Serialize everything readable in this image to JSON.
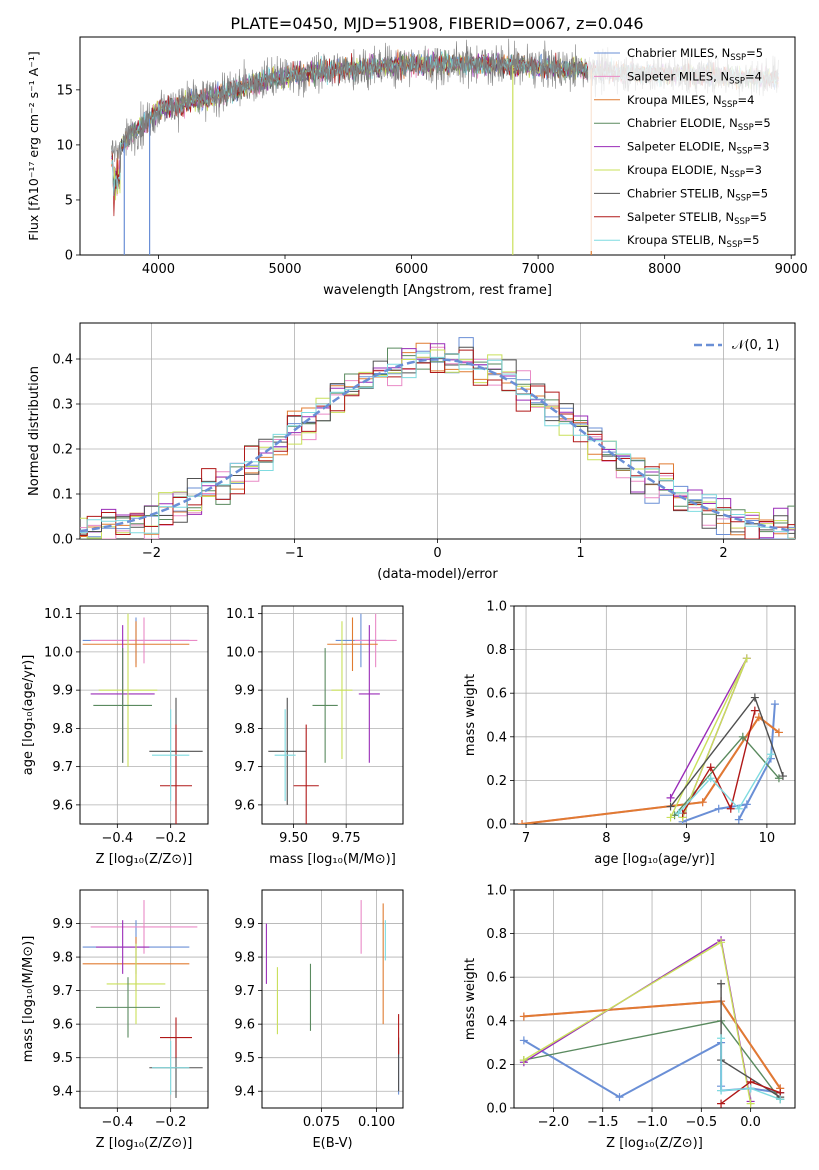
{
  "figure_title": "PLATE=0450, MJD=51908, FIBERID=0067, z=0.046",
  "colors": {
    "chabrier_miles": "#6a8fd6",
    "salpeter_miles": "#e98ac6",
    "kroupa_miles": "#e07b31",
    "chabrier_elodie": "#5a8a5f",
    "salpeter_elodie": "#9a2cb8",
    "kroupa_elodie": "#c9e05a",
    "chabrier_stelib": "#505050",
    "salpeter_stelib": "#b01818",
    "kroupa_stelib": "#7fdbe0",
    "data": "#7f7f7f",
    "normal_curve": "#6a8fd6",
    "grid": "#b0b0b0"
  },
  "chart_data": [
    {
      "id": "spectrum",
      "type": "line",
      "xlabel": "wavelength [Angstrom, rest frame]",
      "ylabel": "Flux [fλ10⁻¹⁷ erg cm⁻² s⁻¹ A⁻¹]",
      "xlim": [
        3380,
        9030
      ],
      "ylim": [
        0,
        19.8
      ],
      "xticks": [
        "4000",
        "5000",
        "6000",
        "7000",
        "8000",
        "9000"
      ],
      "yticks": [
        "0",
        "5",
        "10",
        "15"
      ],
      "grid": false,
      "legend_position": "upper right",
      "legend": [
        {
          "label": "Chabrier MILES, N",
          "sub": "SSP",
          "suffix": "=5",
          "color_key": "chabrier_miles"
        },
        {
          "label": "Salpeter MILES, N",
          "sub": "SSP",
          "suffix": "=4",
          "color_key": "salpeter_miles"
        },
        {
          "label": "Kroupa MILES, N",
          "sub": "SSP",
          "suffix": "=4",
          "color_key": "kroupa_miles"
        },
        {
          "label": "Chabrier ELODIE, N",
          "sub": "SSP",
          "suffix": "=5",
          "color_key": "chabrier_elodie"
        },
        {
          "label": "Salpeter ELODIE, N",
          "sub": "SSP",
          "suffix": "=3",
          "color_key": "salpeter_elodie"
        },
        {
          "label": "Kroupa ELODIE, N",
          "sub": "SSP",
          "suffix": "=3",
          "color_key": "kroupa_elodie"
        },
        {
          "label": "Chabrier STELIB, N",
          "sub": "SSP",
          "suffix": "=5",
          "color_key": "chabrier_stelib"
        },
        {
          "label": "Salpeter STELIB, N",
          "sub": "SSP",
          "suffix": "=5",
          "color_key": "salpeter_stelib"
        },
        {
          "label": "Kroupa STELIB, N",
          "sub": "SSP",
          "suffix": "=5",
          "color_key": "kroupa_stelib"
        }
      ],
      "continuum": {
        "x": [
          3630,
          3700,
          3800,
          3900,
          4000,
          4200,
          4500,
          4800,
          5100,
          5500,
          6000,
          6500,
          7000,
          7400,
          7800,
          8200,
          8600,
          8900
        ],
        "y": [
          9.0,
          9.8,
          11.2,
          12.0,
          13.2,
          13.8,
          14.6,
          15.8,
          16.4,
          16.9,
          17.3,
          17.4,
          17.1,
          16.8,
          16.5,
          16.4,
          16.2,
          16.1
        ]
      },
      "drops": [
        {
          "x": 3730,
          "y": 0
        },
        {
          "x": 3930,
          "y": 0
        },
        {
          "x": 6800,
          "y": 0
        },
        {
          "x": 7420,
          "y": 0
        }
      ]
    },
    {
      "id": "residuals",
      "type": "line",
      "xlabel": "(data-model)/error",
      "ylabel": "Normed distribution",
      "xlim": [
        -2.5,
        2.5
      ],
      "ylim": [
        0,
        0.48
      ],
      "xticks": [
        "−2",
        "−1",
        "0",
        "1",
        "2"
      ],
      "yticks": [
        "0.0",
        "0.1",
        "0.2",
        "0.3",
        "0.4"
      ],
      "grid": true,
      "legend": "𝒩(0, 1)",
      "legend_position": "upper right",
      "bin_width": 0.1,
      "normal": {
        "mean": 0,
        "sigma": 1
      }
    },
    {
      "id": "age_vs_Z",
      "type": "scatter",
      "xlabel": "Z [log₁₀(Z/Z⊙)]",
      "ylabel": "age  [log₁₀(age/yr)]",
      "xlim": [
        -0.54,
        -0.06
      ],
      "ylim": [
        9.55,
        10.12
      ],
      "xticks": [
        "−0.4",
        "−0.2"
      ],
      "yticks": [
        "9.6",
        "9.7",
        "9.8",
        "9.9",
        "10.0",
        "10.1"
      ],
      "grid": true,
      "points": [
        {
          "x": -0.33,
          "y": 10.03,
          "xerr": 0.2,
          "yerr": 0.06,
          "color_key": "chabrier_miles"
        },
        {
          "x": -0.3,
          "y": 10.03,
          "xerr": 0.2,
          "yerr": 0.06,
          "color_key": "salpeter_miles"
        },
        {
          "x": -0.33,
          "y": 10.02,
          "xerr": 0.2,
          "yerr": 0.06,
          "color_key": "kroupa_miles"
        },
        {
          "x": -0.38,
          "y": 9.89,
          "xerr": 0.12,
          "yerr": 0.18,
          "color_key": "salpeter_elodie"
        },
        {
          "x": -0.36,
          "y": 9.9,
          "xerr": 0.11,
          "yerr": 0.2,
          "color_key": "kroupa_elodie"
        },
        {
          "x": -0.38,
          "y": 9.86,
          "xerr": 0.11,
          "yerr": 0.15,
          "color_key": "chabrier_elodie"
        },
        {
          "x": -0.18,
          "y": 9.74,
          "xerr": 0.1,
          "yerr": 0.14,
          "color_key": "chabrier_stelib"
        },
        {
          "x": -0.18,
          "y": 9.65,
          "xerr": 0.06,
          "yerr": 0.16,
          "color_key": "salpeter_stelib"
        },
        {
          "x": -0.2,
          "y": 9.73,
          "xerr": 0.07,
          "yerr": 0.12,
          "color_key": "kroupa_stelib"
        }
      ]
    },
    {
      "id": "age_vs_mass",
      "type": "scatter",
      "xlabel": "mass [log₁₀(M/M⊙)]",
      "ylabel": "",
      "xlim": [
        9.35,
        10.02
      ],
      "ylim": [
        9.55,
        10.12
      ],
      "xticks": [
        "9.50",
        "9.75"
      ],
      "yticks": [
        "9.6",
        "9.7",
        "9.8",
        "9.9",
        "10.0",
        "10.1"
      ],
      "grid": true,
      "points": [
        {
          "x": 9.82,
          "y": 10.03,
          "xerr": 0.12,
          "yerr": 0.07,
          "color_key": "chabrier_miles"
        },
        {
          "x": 9.89,
          "y": 10.03,
          "xerr": 0.1,
          "yerr": 0.07,
          "color_key": "salpeter_miles"
        },
        {
          "x": 9.78,
          "y": 10.02,
          "xerr": 0.12,
          "yerr": 0.07,
          "color_key": "kroupa_miles"
        },
        {
          "x": 9.86,
          "y": 9.89,
          "xerr": 0.05,
          "yerr": 0.18,
          "color_key": "salpeter_elodie"
        },
        {
          "x": 9.73,
          "y": 9.9,
          "xerr": 0.05,
          "yerr": 0.18,
          "color_key": "kroupa_elodie"
        },
        {
          "x": 9.65,
          "y": 9.86,
          "xerr": 0.06,
          "yerr": 0.15,
          "color_key": "chabrier_elodie"
        },
        {
          "x": 9.47,
          "y": 9.74,
          "xerr": 0.09,
          "yerr": 0.14,
          "color_key": "chabrier_stelib"
        },
        {
          "x": 9.56,
          "y": 9.65,
          "xerr": 0.06,
          "yerr": 0.16,
          "color_key": "salpeter_stelib"
        },
        {
          "x": 9.46,
          "y": 9.73,
          "xerr": 0.05,
          "yerr": 0.12,
          "color_key": "kroupa_stelib"
        }
      ]
    },
    {
      "id": "weight_vs_age",
      "type": "line",
      "xlabel": "age  [log₁₀(age/yr)]",
      "ylabel": "mass weight",
      "xlim": [
        6.85,
        10.35
      ],
      "ylim": [
        0,
        1.0
      ],
      "xticks": [
        "7",
        "8",
        "9",
        "10"
      ],
      "yticks": [
        "0.0",
        "0.2",
        "0.4",
        "0.6",
        "0.8",
        "1.0"
      ],
      "grid": true,
      "series": [
        {
          "color_key": "chabrier_miles",
          "x": [
            8.95,
            9.4,
            9.75,
            9.65,
            10.05,
            10.1
          ],
          "y": [
            0.01,
            0.07,
            0.09,
            0.02,
            0.3,
            0.55
          ]
        },
        {
          "color_key": "salpeter_miles",
          "x": [
            6.95,
            9.2,
            9.9,
            10.15
          ],
          "y": [
            0.0,
            0.1,
            0.49,
            0.42
          ]
        },
        {
          "color_key": "kroupa_miles",
          "x": [
            6.95,
            9.2,
            9.9,
            10.15
          ],
          "y": [
            0.0,
            0.1,
            0.49,
            0.42
          ]
        },
        {
          "color_key": "chabrier_elodie",
          "x": [
            8.85,
            9.7,
            10.15
          ],
          "y": [
            0.04,
            0.4,
            0.21
          ]
        },
        {
          "color_key": "salpeter_elodie",
          "x": [
            8.8,
            9.75,
            8.95
          ],
          "y": [
            0.12,
            0.76,
            0.03
          ]
        },
        {
          "color_key": "kroupa_elodie",
          "x": [
            8.8,
            9.75,
            8.95
          ],
          "y": [
            0.03,
            0.76,
            0.03
          ]
        },
        {
          "color_key": "chabrier_stelib",
          "x": [
            8.8,
            9.85,
            10.2
          ],
          "y": [
            0.08,
            0.58,
            0.22
          ]
        },
        {
          "color_key": "salpeter_stelib",
          "x": [
            8.95,
            9.3,
            9.55,
            9.85
          ],
          "y": [
            0.05,
            0.26,
            0.07,
            0.52
          ]
        },
        {
          "color_key": "kroupa_stelib",
          "x": [
            8.9,
            9.3,
            9.65,
            10.05
          ],
          "y": [
            0.05,
            0.21,
            0.07,
            0.32
          ]
        }
      ]
    },
    {
      "id": "mass_vs_Z",
      "type": "scatter",
      "xlabel": "Z [log₁₀(Z/Z⊙)]",
      "ylabel": "mass [log₁₀(M/M⊙)]",
      "xlim": [
        -0.54,
        -0.06
      ],
      "ylim": [
        9.35,
        10.0
      ],
      "xticks": [
        "−0.4",
        "−0.2"
      ],
      "yticks": [
        "9.4",
        "9.5",
        "9.6",
        "9.7",
        "9.8",
        "9.9"
      ],
      "grid": true,
      "points": [
        {
          "x": -0.33,
          "y": 9.83,
          "xerr": 0.2,
          "yerr": 0.08,
          "color_key": "chabrier_miles"
        },
        {
          "x": -0.3,
          "y": 9.89,
          "xerr": 0.2,
          "yerr": 0.08,
          "color_key": "salpeter_miles"
        },
        {
          "x": -0.33,
          "y": 9.78,
          "xerr": 0.2,
          "yerr": 0.08,
          "color_key": "kroupa_miles"
        },
        {
          "x": -0.38,
          "y": 9.83,
          "xerr": 0.1,
          "yerr": 0.08,
          "color_key": "salpeter_elodie"
        },
        {
          "x": -0.33,
          "y": 9.72,
          "xerr": 0.11,
          "yerr": 0.12,
          "color_key": "kroupa_elodie"
        },
        {
          "x": -0.36,
          "y": 9.65,
          "xerr": 0.12,
          "yerr": 0.09,
          "color_key": "chabrier_elodie"
        },
        {
          "x": -0.18,
          "y": 9.47,
          "xerr": 0.1,
          "yerr": 0.09,
          "color_key": "chabrier_stelib"
        },
        {
          "x": -0.18,
          "y": 9.56,
          "xerr": 0.06,
          "yerr": 0.06,
          "color_key": "salpeter_stelib"
        },
        {
          "x": -0.2,
          "y": 9.47,
          "xerr": 0.07,
          "yerr": 0.08,
          "color_key": "kroupa_stelib"
        }
      ]
    },
    {
      "id": "mass_vs_ebv",
      "type": "scatter",
      "xlabel": "E(B-V)",
      "ylabel": "",
      "xlim": [
        0.048,
        0.112
      ],
      "ylim": [
        9.35,
        10.0
      ],
      "xticks": [
        "0.075",
        "0.100"
      ],
      "yticks": [
        "9.4",
        "9.5",
        "9.6",
        "9.7",
        "9.8",
        "9.9"
      ],
      "grid": true,
      "points": [
        {
          "x": 0.11,
          "y": 9.47,
          "xerr": 0,
          "yerr": 0.08,
          "color_key": "chabrier_miles"
        },
        {
          "x": 0.093,
          "y": 9.89,
          "xerr": 0,
          "yerr": 0.08,
          "color_key": "salpeter_miles"
        },
        {
          "x": 0.103,
          "y": 9.78,
          "xerr": 0,
          "yerr": 0.18,
          "color_key": "kroupa_miles"
        },
        {
          "x": 0.05,
          "y": 9.81,
          "xerr": 0,
          "yerr": 0.09,
          "color_key": "salpeter_elodie"
        },
        {
          "x": 0.055,
          "y": 9.67,
          "xerr": 0,
          "yerr": 0.1,
          "color_key": "kroupa_elodie"
        },
        {
          "x": 0.07,
          "y": 9.68,
          "xerr": 0,
          "yerr": 0.1,
          "color_key": "chabrier_elodie"
        },
        {
          "x": 0.11,
          "y": 9.48,
          "xerr": 0,
          "yerr": 0.08,
          "color_key": "chabrier_stelib"
        },
        {
          "x": 0.11,
          "y": 9.57,
          "xerr": 0,
          "yerr": 0.06,
          "color_key": "salpeter_stelib"
        },
        {
          "x": 0.104,
          "y": 9.85,
          "xerr": 0,
          "yerr": 0.06,
          "color_key": "kroupa_stelib"
        }
      ]
    },
    {
      "id": "weight_vs_Z",
      "type": "line",
      "xlabel": "Z [log₁₀(Z/Z⊙)]",
      "ylabel": "mass weight",
      "xlim": [
        -2.4,
        0.45
      ],
      "ylim": [
        0,
        1.0
      ],
      "xticks": [
        "−2.0",
        "−1.5",
        "−1.0",
        "−0.5",
        "0.0"
      ],
      "yticks": [
        "0.0",
        "0.2",
        "0.4",
        "0.6",
        "0.8",
        "1.0"
      ],
      "grid": true,
      "series": [
        {
          "color_key": "chabrier_miles",
          "x": [
            -2.3,
            -1.33,
            -0.3,
            -0.3,
            -0.3,
            0.0,
            0.3
          ],
          "y": [
            0.31,
            0.05,
            0.3,
            0.1,
            0.08,
            0.09,
            0.07
          ]
        },
        {
          "color_key": "salpeter_miles",
          "x": [
            -2.3,
            -0.3,
            0.3
          ],
          "y": [
            0.42,
            0.49,
            0.09
          ]
        },
        {
          "color_key": "kroupa_miles",
          "x": [
            -2.3,
            -0.3,
            0.3
          ],
          "y": [
            0.42,
            0.49,
            0.09
          ]
        },
        {
          "color_key": "chabrier_elodie",
          "x": [
            -2.3,
            -0.3,
            0.3
          ],
          "y": [
            0.22,
            0.4,
            0.04
          ]
        },
        {
          "color_key": "salpeter_elodie",
          "x": [
            -2.3,
            -0.3,
            0.0
          ],
          "y": [
            0.21,
            0.77,
            0.03
          ]
        },
        {
          "color_key": "kroupa_elodie",
          "x": [
            -2.3,
            -0.3,
            0.0
          ],
          "y": [
            0.22,
            0.76,
            0.02
          ]
        },
        {
          "color_key": "chabrier_stelib",
          "x": [
            -0.3,
            -0.3,
            0.3
          ],
          "y": [
            0.57,
            0.22,
            0.05
          ]
        },
        {
          "color_key": "salpeter_stelib",
          "x": [
            -0.3,
            0.0,
            0.3
          ],
          "y": [
            0.02,
            0.12,
            0.07
          ]
        },
        {
          "color_key": "kroupa_stelib",
          "x": [
            -0.3,
            -0.3,
            0.0,
            0.3
          ],
          "y": [
            0.32,
            0.08,
            0.09,
            0.04
          ]
        }
      ]
    }
  ]
}
